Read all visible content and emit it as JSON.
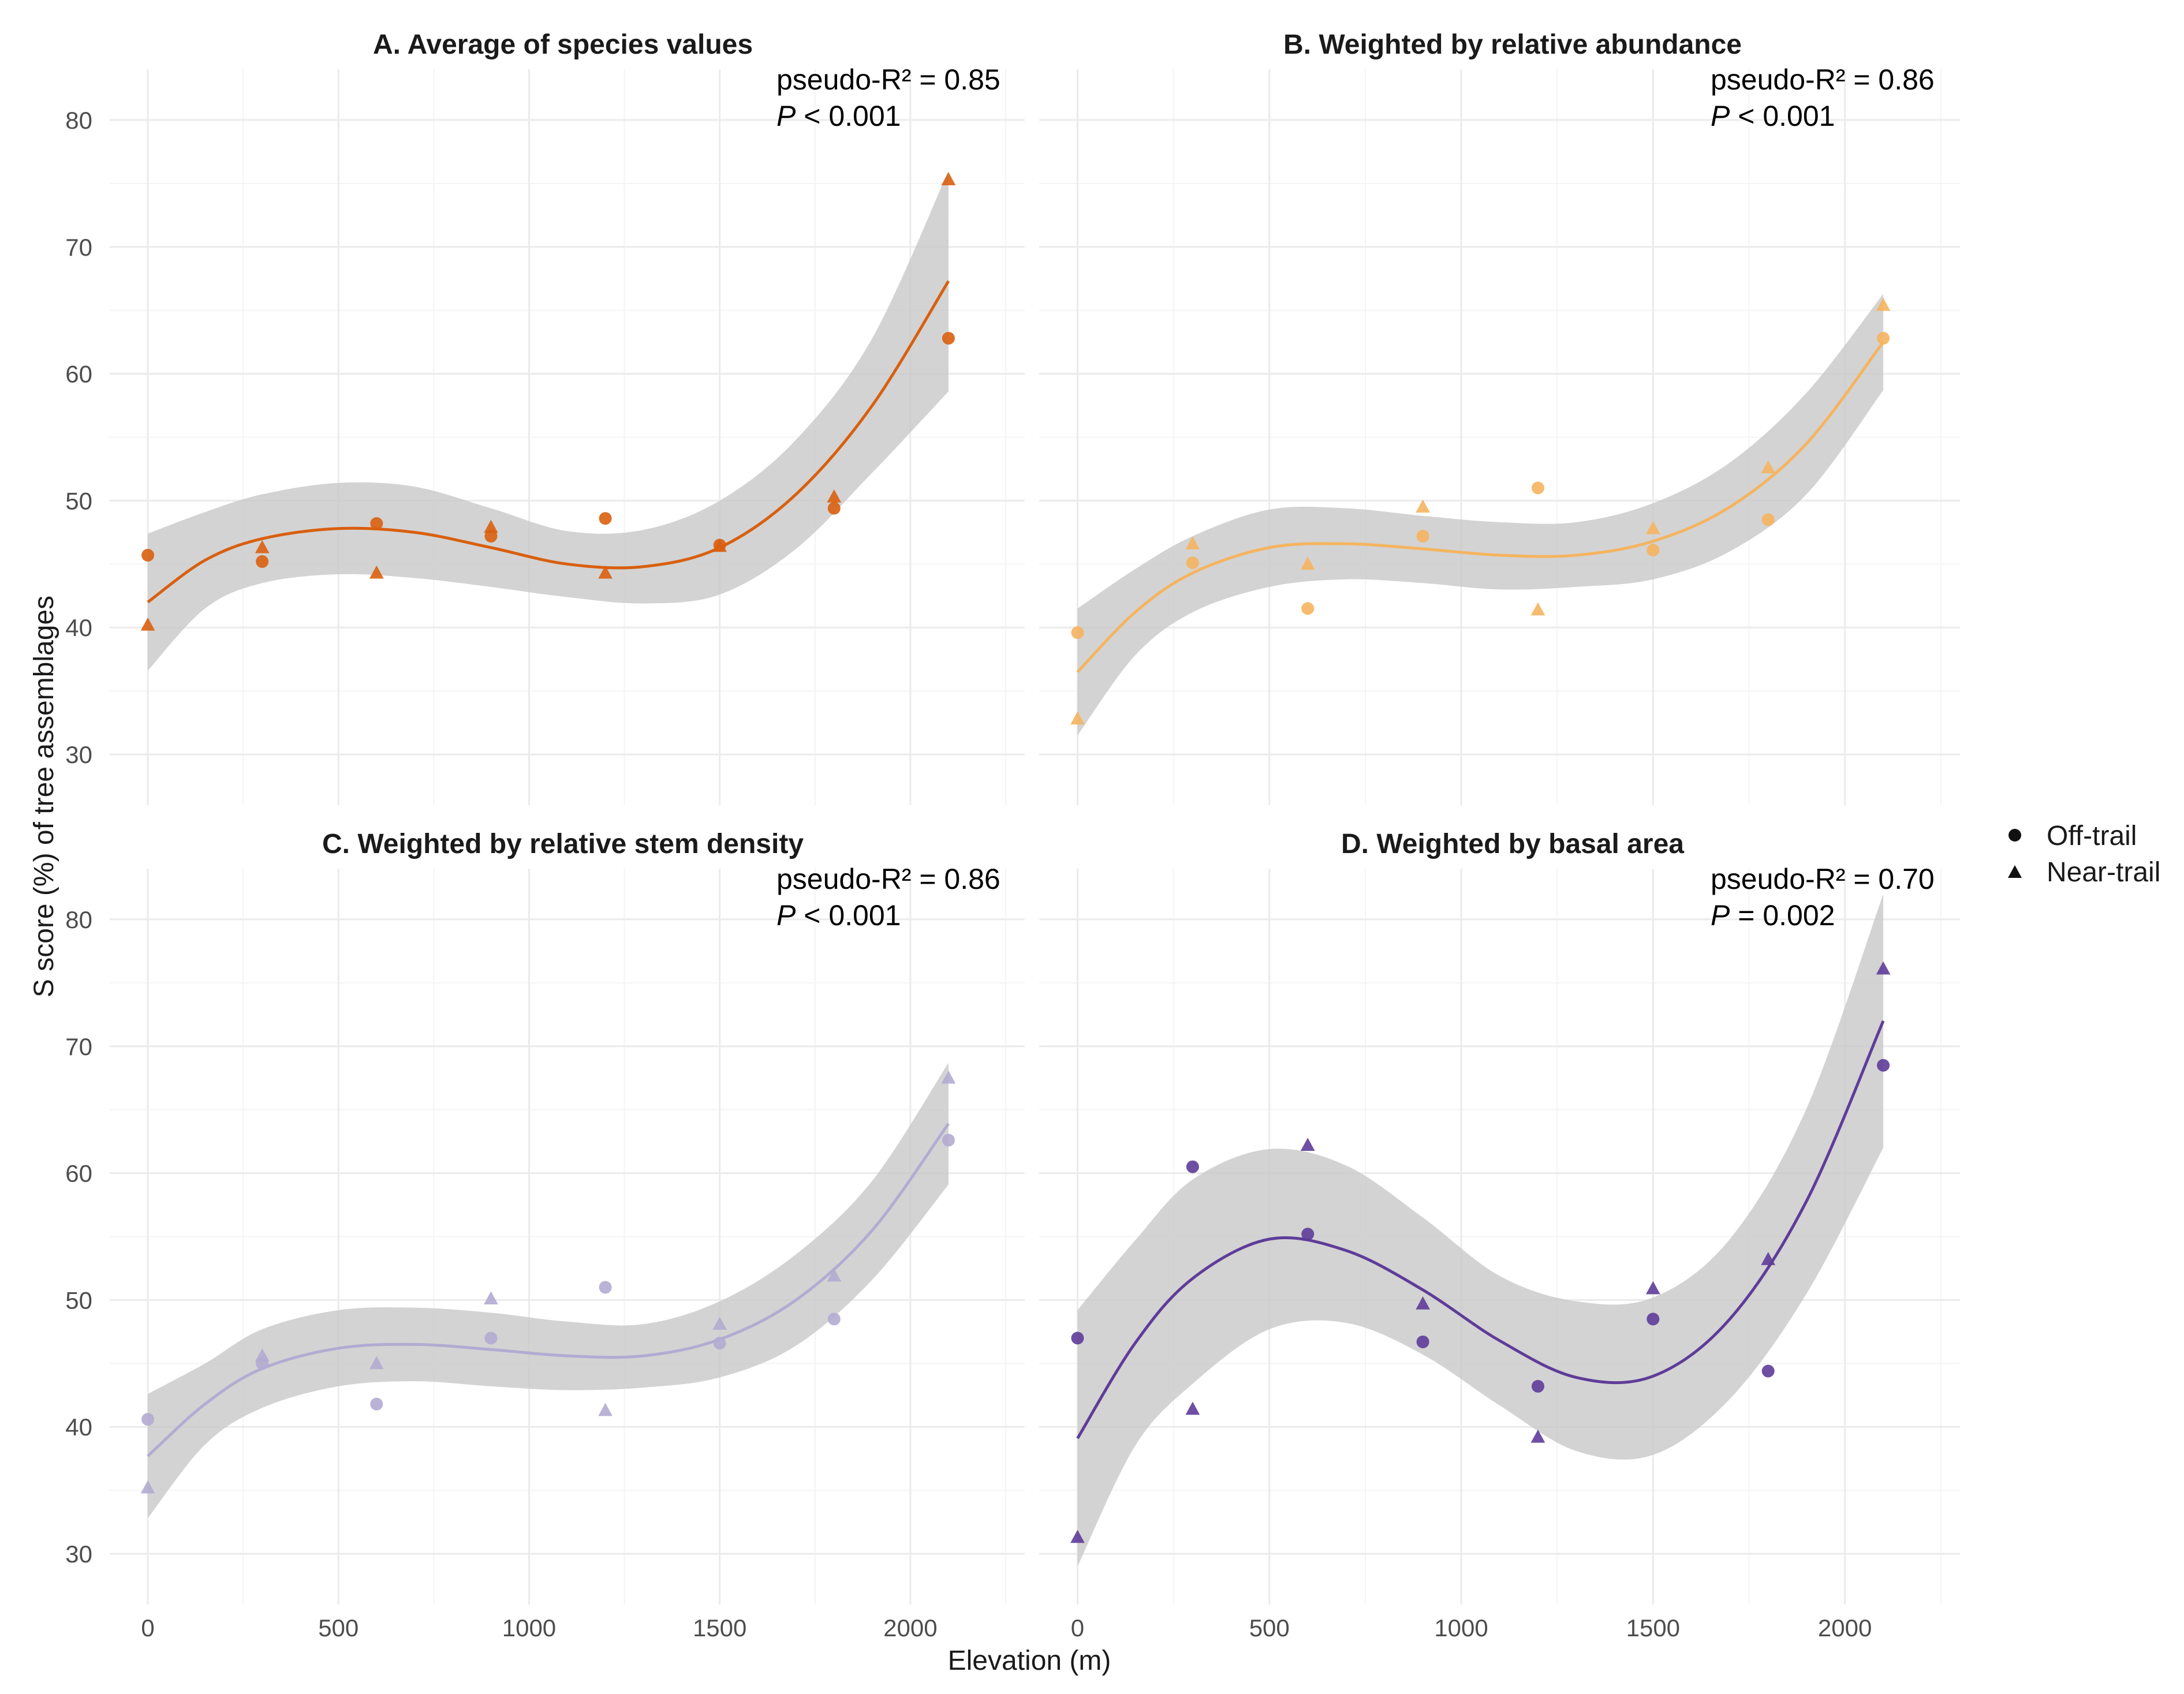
{
  "figure": {
    "y_axis_title": "S score (%) of tree assemblages",
    "x_axis_title": "Elevation (m)",
    "legend": [
      {
        "label": "Off-trail",
        "shape": "circle"
      },
      {
        "label": "Near-trail",
        "shape": "triangle"
      }
    ],
    "band_color": "#c8c8c8"
  },
  "chart_data": [
    {
      "type": "scatter",
      "title": "A. Average of species values",
      "stat_line1": "pseudo-R² = 0.85",
      "stat_p_symbol": "P",
      "stat_p_rest": " < 0.001",
      "color": "#d95f0e",
      "xlabel": "Elevation (m)",
      "ylabel": "S score (%) of tree assemblages",
      "xlim": [
        -100,
        2300
      ],
      "ylim": [
        26,
        84
      ],
      "x_ticks": [
        0,
        500,
        1000,
        1500,
        2000
      ],
      "y_ticks": [
        30,
        40,
        50,
        60,
        70,
        80
      ],
      "series": [
        {
          "name": "Off-trail",
          "shape": "circle",
          "x": [
            0,
            300,
            600,
            900,
            1200,
            1500,
            1800,
            2100
          ],
          "y": [
            45.7,
            45.2,
            48.2,
            47.2,
            48.6,
            46.5,
            49.4,
            62.8
          ]
        },
        {
          "name": "Near-trail",
          "shape": "triangle",
          "x": [
            0,
            300,
            600,
            900,
            1200,
            1500,
            1800,
            2100
          ],
          "y": [
            40.2,
            46.3,
            44.3,
            47.9,
            44.3,
            46.4,
            50.3,
            75.3
          ]
        }
      ],
      "fit": {
        "x": [
          0,
          150,
          300,
          500,
          700,
          900,
          1100,
          1300,
          1500,
          1700,
          1900,
          2100
        ],
        "y": [
          42.0,
          45.3,
          47.0,
          47.8,
          47.5,
          46.3,
          45.0,
          44.8,
          46.3,
          50.5,
          57.5,
          67.3
        ],
        "lower": [
          36.6,
          41.5,
          43.5,
          44.2,
          43.9,
          43.2,
          42.4,
          41.9,
          42.6,
          46.2,
          52.2,
          58.6
        ],
        "upper": [
          47.4,
          49.1,
          50.5,
          51.4,
          51.1,
          49.4,
          47.6,
          47.7,
          50.0,
          54.8,
          62.8,
          76.0
        ]
      }
    },
    {
      "type": "scatter",
      "title": "B. Weighted by relative abundance",
      "stat_line1": "pseudo-R² = 0.86",
      "stat_p_symbol": "P",
      "stat_p_rest": " < 0.001",
      "color": "#f5b45f",
      "xlabel": "Elevation (m)",
      "ylabel": "S score (%) of tree assemblages",
      "xlim": [
        -100,
        2300
      ],
      "ylim": [
        26,
        84
      ],
      "x_ticks": [
        0,
        500,
        1000,
        1500,
        2000
      ],
      "y_ticks": [
        30,
        40,
        50,
        60,
        70,
        80
      ],
      "series": [
        {
          "name": "Off-trail",
          "shape": "circle",
          "x": [
            0,
            300,
            600,
            900,
            1200,
            1500,
            1800,
            2100
          ],
          "y": [
            39.6,
            45.1,
            41.5,
            47.2,
            51.0,
            46.1,
            48.5,
            62.8
          ]
        },
        {
          "name": "Near-trail",
          "shape": "triangle",
          "x": [
            0,
            300,
            600,
            900,
            1200,
            1500,
            1800,
            2100
          ],
          "y": [
            32.8,
            46.6,
            45.0,
            49.5,
            41.4,
            47.8,
            52.6,
            65.4
          ]
        }
      ],
      "fit": {
        "x": [
          0,
          150,
          300,
          500,
          700,
          900,
          1100,
          1300,
          1500,
          1700,
          1900,
          2100
        ],
        "y": [
          36.5,
          41.2,
          44.3,
          46.3,
          46.6,
          46.2,
          45.7,
          45.7,
          46.8,
          49.5,
          54.5,
          62.5
        ],
        "lower": [
          31.5,
          37.8,
          41.2,
          43.2,
          43.8,
          43.5,
          43.0,
          43.2,
          43.8,
          46.0,
          50.5,
          58.7
        ],
        "upper": [
          41.5,
          44.6,
          47.2,
          49.3,
          49.4,
          48.8,
          48.3,
          48.3,
          49.8,
          53.0,
          58.5,
          66.3
        ]
      }
    },
    {
      "type": "scatter",
      "title": "C. Weighted by relative stem density",
      "stat_line1": "pseudo-R² = 0.86",
      "stat_p_symbol": "P",
      "stat_p_rest": " < 0.001",
      "color": "#b2abd2",
      "xlabel": "Elevation (m)",
      "ylabel": "S score (%) of tree assemblages",
      "xlim": [
        -100,
        2300
      ],
      "ylim": [
        26,
        84
      ],
      "x_ticks": [
        0,
        500,
        1000,
        1500,
        2000
      ],
      "y_ticks": [
        30,
        40,
        50,
        60,
        70,
        80
      ],
      "series": [
        {
          "name": "Off-trail",
          "shape": "circle",
          "x": [
            0,
            300,
            600,
            900,
            1200,
            1500,
            1800,
            2100
          ],
          "y": [
            40.6,
            45.0,
            41.8,
            47.0,
            51.0,
            46.6,
            48.5,
            62.6
          ]
        },
        {
          "name": "Near-trail",
          "shape": "triangle",
          "x": [
            0,
            300,
            600,
            900,
            1200,
            1500,
            1800,
            2100
          ],
          "y": [
            35.2,
            45.6,
            45.0,
            50.1,
            41.3,
            48.1,
            51.9,
            67.5
          ]
        }
      ],
      "fit": {
        "x": [
          0,
          150,
          300,
          500,
          700,
          900,
          1100,
          1300,
          1500,
          1700,
          1900,
          2100
        ],
        "y": [
          37.7,
          41.8,
          44.6,
          46.2,
          46.5,
          46.1,
          45.6,
          45.6,
          46.9,
          50.0,
          55.5,
          63.9
        ],
        "lower": [
          32.8,
          38.6,
          41.5,
          43.2,
          43.6,
          43.2,
          42.9,
          43.1,
          43.9,
          46.4,
          51.6,
          59.1
        ],
        "upper": [
          42.6,
          45.0,
          47.7,
          49.2,
          49.4,
          49.0,
          48.3,
          48.1,
          49.9,
          53.6,
          59.4,
          68.7
        ]
      }
    },
    {
      "type": "scatter",
      "title": "D. Weighted by basal area",
      "stat_line1": "pseudo-R² = 0.70",
      "stat_p_symbol": "P",
      "stat_p_rest": " = 0.002",
      "color": "#5e3c99",
      "xlabel": "Elevation (m)",
      "ylabel": "S score (%) of tree assemblages",
      "xlim": [
        -100,
        2300
      ],
      "ylim": [
        26,
        84
      ],
      "x_ticks": [
        0,
        500,
        1000,
        1500,
        2000
      ],
      "y_ticks": [
        30,
        40,
        50,
        60,
        70,
        80
      ],
      "series": [
        {
          "name": "Off-trail",
          "shape": "circle",
          "x": [
            0,
            300,
            600,
            900,
            1200,
            1500,
            1800,
            2100
          ],
          "y": [
            47.0,
            60.5,
            55.2,
            46.7,
            43.2,
            48.5,
            44.4,
            68.5
          ]
        },
        {
          "name": "Near-trail",
          "shape": "triangle",
          "x": [
            0,
            300,
            600,
            900,
            1200,
            1500,
            1800,
            2100
          ],
          "y": [
            31.3,
            41.4,
            62.2,
            49.7,
            39.2,
            50.9,
            53.2,
            76.1
          ]
        }
      ],
      "fit": {
        "x": [
          0,
          150,
          300,
          500,
          700,
          900,
          1100,
          1300,
          1500,
          1700,
          1900,
          2100
        ],
        "y": [
          39.1,
          46.6,
          51.7,
          54.8,
          53.9,
          50.8,
          46.8,
          43.9,
          44.0,
          48.5,
          57.8,
          72.0
        ],
        "lower": [
          29.0,
          38.5,
          43.4,
          47.7,
          48.2,
          45.7,
          41.7,
          38.1,
          37.8,
          42.2,
          50.5,
          62.0
        ],
        "upper": [
          49.2,
          54.7,
          59.5,
          61.9,
          60.6,
          56.5,
          51.9,
          49.9,
          50.2,
          54.8,
          65.1,
          82.0
        ]
      }
    }
  ]
}
